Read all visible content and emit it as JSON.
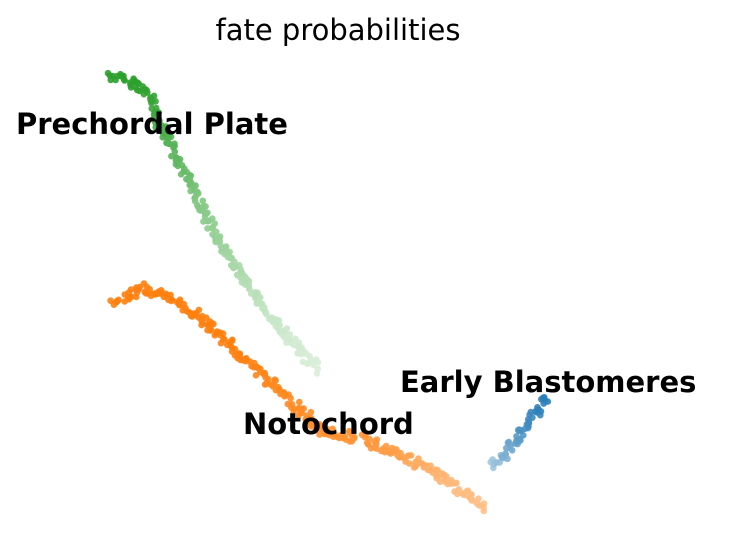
{
  "chart_data": {
    "type": "scatter",
    "title": "fate probabilities",
    "xlabel": "",
    "ylabel": "",
    "axes_visible": false,
    "grid": false,
    "legend": "none (labels placed on plot)",
    "colors": {
      "Prechordal Plate": "#2ca02c",
      "Notochord": "#ff7f0e",
      "Early Blastomeres": "#1f77b4"
    },
    "annotations": [
      "Prechordal Plate",
      "Notochord",
      "Early Blastomeres"
    ],
    "series": [
      {
        "name": "Prechordal Plate",
        "color": "#2ca02c",
        "path": [
          [
            110,
            75
          ],
          [
            140,
            85
          ],
          [
            152,
            100
          ],
          [
            158,
            120
          ],
          [
            168,
            140
          ],
          [
            182,
            165
          ],
          [
            196,
            195
          ],
          [
            210,
            225
          ],
          [
            228,
            255
          ],
          [
            248,
            285
          ],
          [
            270,
            315
          ],
          [
            295,
            345
          ],
          [
            320,
            370
          ]
        ],
        "strength": [
          1.0,
          1.0,
          0.95,
          0.9,
          0.8,
          0.7,
          0.55,
          0.45,
          0.35,
          0.25,
          0.15,
          0.08,
          0.03
        ]
      },
      {
        "name": "Notochord",
        "color": "#ff7f0e",
        "path": [
          [
            115,
            305
          ],
          [
            140,
            288
          ],
          [
            175,
            300
          ],
          [
            205,
            322
          ],
          [
            235,
            350
          ],
          [
            262,
            375
          ],
          [
            290,
            400
          ],
          [
            320,
            430
          ],
          [
            365,
            440
          ],
          [
            400,
            455
          ],
          [
            430,
            470
          ],
          [
            460,
            490
          ],
          [
            485,
            510
          ]
        ],
        "strength": [
          1.0,
          1.0,
          1.0,
          1.0,
          1.0,
          0.95,
          0.9,
          0.85,
          0.8,
          0.7,
          0.55,
          0.45,
          0.4
        ]
      },
      {
        "name": "Early Blastomeres",
        "color": "#1f77b4",
        "path": [
          [
            490,
            465
          ],
          [
            505,
            455
          ],
          [
            515,
            440
          ],
          [
            528,
            425
          ],
          [
            540,
            410
          ],
          [
            548,
            398
          ]
        ],
        "strength": [
          0.3,
          0.5,
          0.65,
          0.8,
          0.9,
          0.95
        ]
      }
    ]
  }
}
